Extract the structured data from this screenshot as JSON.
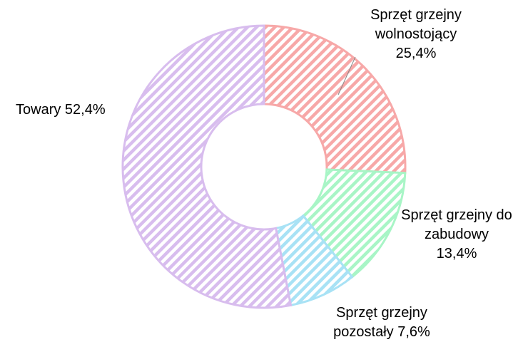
{
  "chart_data": {
    "type": "donut",
    "categories": [
      "Sprzęt grzejny wolnostojący",
      "Sprzęt grzejny do zabudowy",
      "Sprzęt grzejny pozostały",
      "Towary"
    ],
    "values": [
      25.4,
      13.4,
      7.6,
      52.4
    ],
    "value_labels": [
      "25,4%",
      "13,4%",
      "7,6%",
      "52,4%"
    ],
    "colors": [
      "#f7a8a8",
      "#a8f5c6",
      "#a8e2f5",
      "#d8bdee"
    ]
  }
}
